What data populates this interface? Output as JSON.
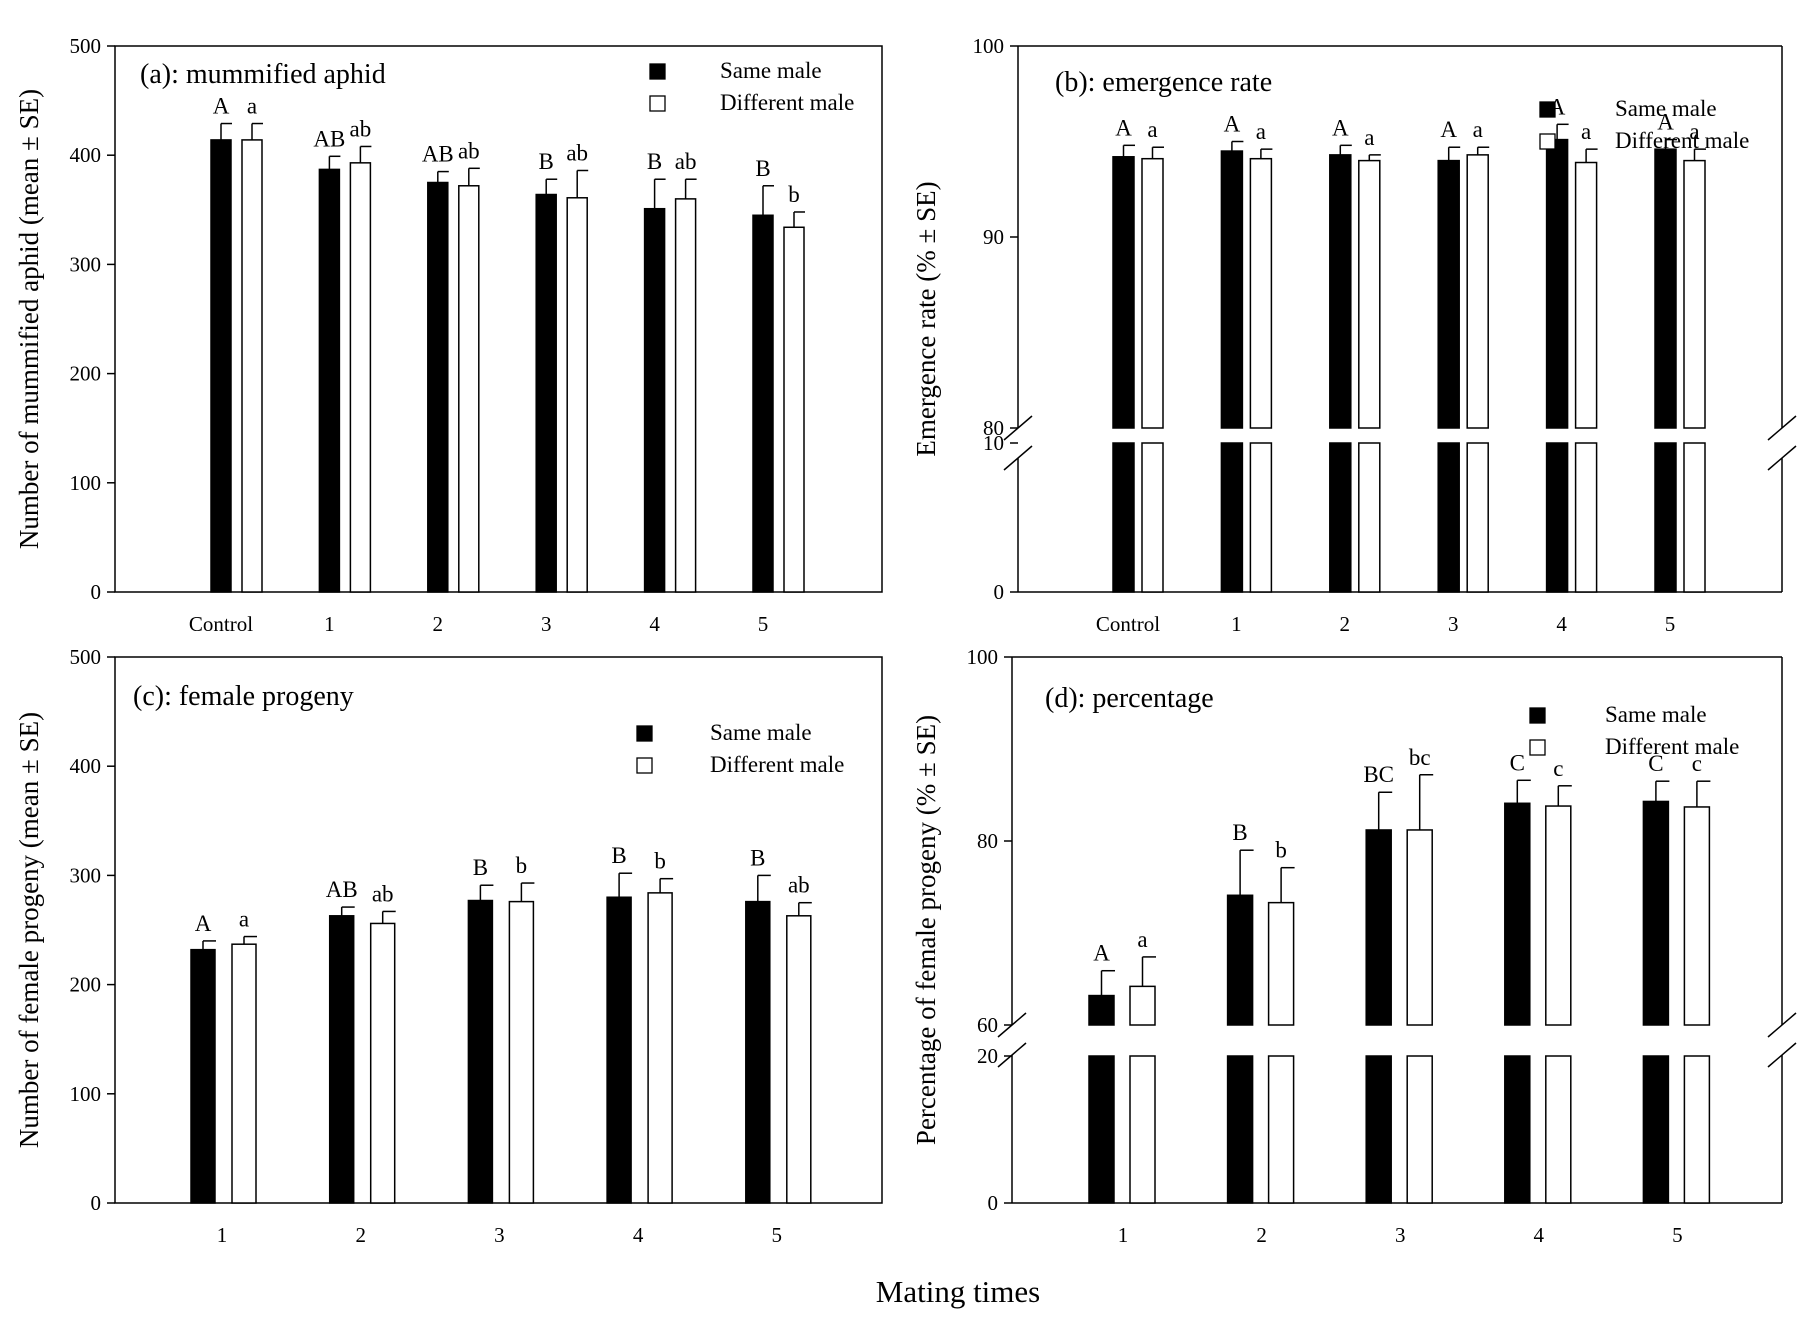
{
  "figure": {
    "xlabel": "Mating times"
  },
  "colors": {
    "same": "#000000",
    "different": "#ffffff",
    "axis": "#000000"
  },
  "chart_data": [
    {
      "type": "bar",
      "title": "(a): mummified aphid",
      "ylabel": "Number of mummified aphid (mean ± SE)",
      "xlabel": "",
      "categories": [
        "Control",
        "1",
        "2",
        "3",
        "4",
        "5"
      ],
      "ylim": [
        0,
        500
      ],
      "yticks": [
        0,
        100,
        200,
        300,
        400,
        500
      ],
      "axis_break": null,
      "legend_position": "top-right",
      "series": [
        {
          "name": "Same male",
          "values": [
            414,
            387,
            375,
            364,
            351,
            345
          ],
          "errors": [
            15,
            12,
            10,
            14,
            27,
            27
          ],
          "letters": [
            "A",
            "AB",
            "AB",
            "B",
            "B",
            "B"
          ]
        },
        {
          "name": "Different male",
          "values": [
            414,
            393,
            372,
            361,
            360,
            334
          ],
          "errors": [
            15,
            15,
            16,
            25,
            18,
            14
          ],
          "letters": [
            "a",
            "ab",
            "ab",
            "ab",
            "ab",
            "b"
          ]
        }
      ]
    },
    {
      "type": "bar",
      "title": "(b): emergence rate",
      "ylabel": "Emergence rate (% ± SE)",
      "xlabel": "",
      "categories": [
        "Control",
        "1",
        "2",
        "3",
        "4",
        "5"
      ],
      "ylim": [
        0,
        100
      ],
      "yticks": [
        0,
        10,
        80,
        90,
        100
      ],
      "axis_break": [
        10,
        80
      ],
      "legend_position": "top-right",
      "series": [
        {
          "name": "Same male",
          "values": [
            94.2,
            94.5,
            94.3,
            94.0,
            95.1,
            94.6
          ],
          "errors": [
            0.6,
            0.5,
            0.5,
            0.7,
            0.8,
            0.5
          ],
          "letters": [
            "A",
            "A",
            "A",
            "A",
            "A",
            "A"
          ]
        },
        {
          "name": "Different male",
          "values": [
            94.1,
            94.1,
            94.0,
            94.3,
            93.9,
            94.0
          ],
          "errors": [
            0.6,
            0.5,
            0.3,
            0.4,
            0.7,
            0.6
          ],
          "letters": [
            "a",
            "a",
            "a",
            "a",
            "a",
            "a"
          ]
        }
      ]
    },
    {
      "type": "bar",
      "title": "(c): female progeny",
      "ylabel": "Number of female progeny (mean ± SE)",
      "xlabel": "",
      "categories": [
        "1",
        "2",
        "3",
        "4",
        "5"
      ],
      "ylim": [
        0,
        500
      ],
      "yticks": [
        0,
        100,
        200,
        300,
        400,
        500
      ],
      "axis_break": null,
      "legend_position": "top-right",
      "series": [
        {
          "name": "Same male",
          "values": [
            232,
            263,
            277,
            280,
            276
          ],
          "errors": [
            8,
            8,
            14,
            22,
            24
          ],
          "letters": [
            "A",
            "AB",
            "B",
            "B",
            "B"
          ]
        },
        {
          "name": "Different male",
          "values": [
            237,
            256,
            276,
            284,
            263
          ],
          "errors": [
            7,
            11,
            17,
            13,
            12
          ],
          "letters": [
            "a",
            "ab",
            "b",
            "b",
            "ab"
          ]
        }
      ]
    },
    {
      "type": "bar",
      "title": "(d): percentage",
      "ylabel": "Percentage of female progeny (% ± SE)",
      "xlabel": "",
      "categories": [
        "1",
        "2",
        "3",
        "4",
        "5"
      ],
      "ylim": [
        0,
        100
      ],
      "yticks": [
        0,
        20,
        60,
        80,
        100
      ],
      "axis_break": [
        20,
        60
      ],
      "legend_position": "top-right",
      "series": [
        {
          "name": "Same male",
          "values": [
            63.2,
            74.1,
            81.2,
            84.1,
            84.3
          ],
          "errors": [
            2.7,
            4.9,
            4.1,
            2.5,
            2.2
          ],
          "letters": [
            "A",
            "B",
            "BC",
            "C",
            "C"
          ]
        },
        {
          "name": "Different male",
          "values": [
            64.2,
            73.3,
            81.2,
            83.8,
            83.7
          ],
          "errors": [
            3.2,
            3.8,
            6.0,
            2.2,
            2.8
          ],
          "letters": [
            "a",
            "b",
            "bc",
            "c",
            "c"
          ]
        }
      ]
    }
  ]
}
